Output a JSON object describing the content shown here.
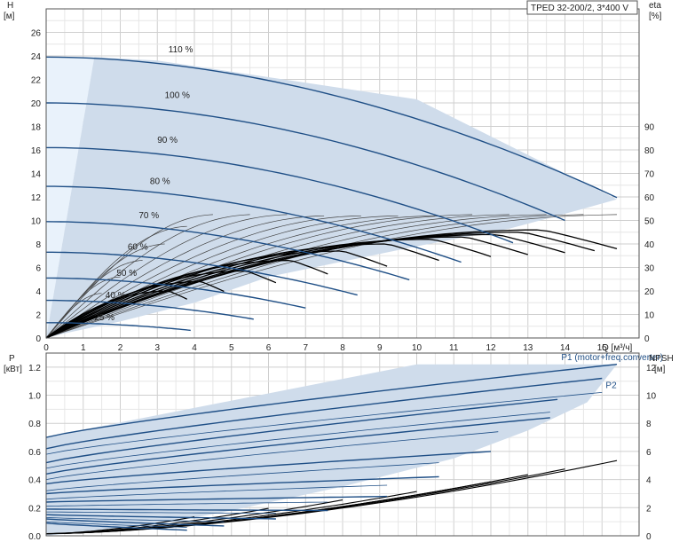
{
  "title": "TPED 32-200/2, 3*400 V",
  "colors": {
    "curve": "#1f4f86",
    "fill": "#cfdceb",
    "fill_light": "#e9f2fb",
    "grid": "#cfcfcf",
    "black": "#000000",
    "thin": "#444444"
  },
  "chart_data": [
    {
      "type": "line",
      "name": "head",
      "ylabel_left": "H",
      "yunit_left": "[м]",
      "ylabel_right": "eta",
      "yunit_right": "[%]",
      "xlabel": "Q [м³/ч]",
      "xlim": [
        0,
        16
      ],
      "ylim": [
        0,
        28
      ],
      "xticks": [
        0,
        1,
        2,
        3,
        4,
        5,
        6,
        7,
        8,
        9,
        10,
        11,
        12,
        13,
        14,
        15
      ],
      "yticks_left": [
        0,
        2,
        4,
        6,
        8,
        10,
        12,
        14,
        16,
        18,
        20,
        22,
        24,
        26
      ],
      "yticks_right": [
        0,
        10,
        20,
        30,
        40,
        50,
        60,
        70,
        80,
        90
      ],
      "eta_per_head_unit": 5,
      "grid": true,
      "speed_curves": [
        {
          "label": "110 %",
          "H0": 23.9,
          "Qmax": 15.4,
          "label_x": 3.3,
          "label_y": 24.3
        },
        {
          "label": "100 %",
          "H0": 20.0,
          "Qmax": 14.0,
          "label_x": 3.2,
          "label_y": 20.4
        },
        {
          "label": "90 %",
          "H0": 16.2,
          "Qmax": 12.6,
          "label_x": 3.0,
          "label_y": 16.6
        },
        {
          "label": "80 %",
          "H0": 12.9,
          "Qmax": 11.2,
          "label_x": 2.8,
          "label_y": 13.1
        },
        {
          "label": "70 %",
          "H0": 9.9,
          "Qmax": 9.8,
          "label_x": 2.5,
          "label_y": 10.2
        },
        {
          "label": "60 %",
          "H0": 7.3,
          "Qmax": 8.4,
          "label_x": 2.2,
          "label_y": 7.5
        },
        {
          "label": "50 %",
          "H0": 5.1,
          "Qmax": 7.0,
          "label_x": 1.9,
          "label_y": 5.3
        },
        {
          "label": "40 %",
          "H0": 3.2,
          "Qmax": 5.6,
          "label_x": 1.6,
          "label_y": 3.4
        },
        {
          "label": "25 %",
          "H0": 1.3,
          "Qmax": 3.9,
          "label_x": 1.3,
          "label_y": 1.5
        }
      ],
      "operating_area": [
        [
          0,
          0
        ],
        [
          1.3,
          23.9
        ],
        [
          3.0,
          23.6
        ],
        [
          10.0,
          20.3
        ],
        [
          15.4,
          11.8
        ],
        [
          14.5,
          11.0
        ],
        [
          12.5,
          9.3
        ],
        [
          10.0,
          7.8
        ],
        [
          6.0,
          5.2
        ],
        [
          4.0,
          3.0
        ],
        [
          2.0,
          1.4
        ],
        [
          0.5,
          0.4
        ]
      ],
      "light_area": [
        [
          0,
          0
        ],
        [
          0,
          23.9
        ],
        [
          1.3,
          23.9
        ]
      ],
      "efficiency_curves": [
        {
          "Qmax": 15.4,
          "peak": 9.2
        },
        {
          "Qmax": 14.8,
          "peak": 9.0
        },
        {
          "Qmax": 14.0,
          "peak": 8.8
        },
        {
          "Qmax": 13.0,
          "peak": 8.6
        },
        {
          "Qmax": 12.0,
          "peak": 8.4
        },
        {
          "Qmax": 10.6,
          "peak": 8.0
        },
        {
          "Qmax": 9.2,
          "peak": 7.4
        },
        {
          "Qmax": 7.6,
          "peak": 6.6
        },
        {
          "Qmax": 6.2,
          "peak": 5.7
        },
        {
          "Qmax": 4.8,
          "peak": 4.8
        },
        {
          "Qmax": 3.8,
          "peak": 4.0
        }
      ],
      "system_curves": [
        {
          "Qmax": 15.4,
          "Hend": 10.5
        },
        {
          "Qmax": 14.5,
          "Hend": 10.5
        },
        {
          "Qmax": 13.5,
          "Hend": 10.5
        },
        {
          "Qmax": 12.5,
          "Hend": 10.5
        },
        {
          "Qmax": 11.5,
          "Hend": 10.5
        },
        {
          "Qmax": 10.5,
          "Hend": 10.4
        },
        {
          "Qmax": 9.5,
          "Hend": 10.4
        },
        {
          "Qmax": 8.5,
          "Hend": 10.4
        },
        {
          "Qmax": 7.5,
          "Hend": 10.4
        },
        {
          "Qmax": 6.5,
          "Hend": 10.5
        },
        {
          "Qmax": 5.5,
          "Hend": 10.5
        },
        {
          "Qmax": 4.5,
          "Hend": 10.5
        },
        {
          "Qmax": 3.8,
          "Hend": 9.5
        },
        {
          "Qmax": 3.2,
          "Hend": 8.0
        },
        {
          "Qmax": 2.6,
          "Hend": 6.6
        },
        {
          "Qmax": 2.0,
          "Hend": 5.2
        },
        {
          "Qmax": 1.5,
          "Hend": 3.8
        }
      ]
    },
    {
      "type": "line",
      "name": "power",
      "ylabel_left": "P",
      "yunit_left": "[кВт]",
      "ylabel_right": "NPSH",
      "yunit_right": "[м]",
      "xlim": [
        0,
        16
      ],
      "ylim": [
        0,
        1.3
      ],
      "yticks_left": [
        0,
        0.2,
        0.4,
        0.6,
        0.8,
        1.0,
        1.2
      ],
      "yticks_left_labels": [
        "0.0",
        "0.2",
        "0.4",
        "0.6",
        "0.8",
        "1.0",
        "1.2"
      ],
      "yticks_right": [
        0,
        2,
        4,
        6,
        8,
        10,
        12
      ],
      "npsh_per_kw": 10,
      "grid": true,
      "series_labels": [
        {
          "text": "P1 (motor+freq.converter)",
          "x": 13.9,
          "y": 1.25
        },
        {
          "text": "P2",
          "x": 15.1,
          "y": 1.05
        }
      ],
      "operating_area": [
        [
          0,
          0
        ],
        [
          0,
          0.7
        ],
        [
          1.3,
          0.77
        ],
        [
          10.0,
          1.22
        ],
        [
          15.4,
          1.22
        ],
        [
          14.6,
          0.95
        ],
        [
          13.0,
          0.75
        ],
        [
          11.0,
          0.55
        ],
        [
          8.0,
          0.35
        ],
        [
          5.0,
          0.18
        ],
        [
          3.0,
          0.08
        ]
      ],
      "p1_curves": [
        {
          "Qmax": 15.4,
          "P0": 0.7,
          "Pend": 1.22
        },
        {
          "Qmax": 15.0,
          "P0": 0.62,
          "Pend": 1.12
        },
        {
          "Qmax": 13.8,
          "P0": 0.52,
          "Pend": 0.97
        },
        {
          "Qmax": 13.6,
          "P0": 0.44,
          "Pend": 0.84
        },
        {
          "Qmax": 12.0,
          "P0": 0.37,
          "Pend": 0.6
        },
        {
          "Qmax": 10.6,
          "P0": 0.3,
          "Pend": 0.42
        },
        {
          "Qmax": 9.2,
          "P0": 0.24,
          "Pend": 0.28
        },
        {
          "Qmax": 7.6,
          "P0": 0.19,
          "Pend": 0.18
        },
        {
          "Qmax": 6.2,
          "P0": 0.15,
          "Pend": 0.12
        },
        {
          "Qmax": 4.8,
          "P0": 0.12,
          "Pend": 0.07
        },
        {
          "Qmax": 3.8,
          "P0": 0.09,
          "Pend": 0.04
        }
      ],
      "p2_curves": [
        {
          "Qmax": 15.0,
          "P0": 0.58,
          "Pend": 1.02
        },
        {
          "Qmax": 13.6,
          "P0": 0.48,
          "Pend": 0.88
        },
        {
          "Qmax": 12.2,
          "P0": 0.4,
          "Pend": 0.74
        },
        {
          "Qmax": 10.6,
          "P0": 0.32,
          "Pend": 0.52
        },
        {
          "Qmax": 9.2,
          "P0": 0.26,
          "Pend": 0.36
        },
        {
          "Qmax": 7.6,
          "P0": 0.21,
          "Pend": 0.24
        },
        {
          "Qmax": 6.2,
          "P0": 0.17,
          "Pend": 0.16
        },
        {
          "Qmax": 4.8,
          "P0": 0.13,
          "Pend": 0.1
        },
        {
          "Qmax": 3.8,
          "P0": 0.1,
          "Pend": 0.06
        }
      ],
      "npsh_curves": [
        {
          "Qmax": 15.4,
          "Nend": 5.2
        },
        {
          "Qmax": 14.0,
          "Nend": 4.6
        },
        {
          "Qmax": 13.0,
          "Nend": 4.2
        },
        {
          "Qmax": 12.0,
          "Nend": 3.7
        },
        {
          "Qmax": 10.0,
          "Nend": 3.0
        },
        {
          "Qmax": 8.0,
          "Nend": 2.4
        },
        {
          "Qmax": 6.0,
          "Nend": 1.8
        },
        {
          "Qmax": 4.0,
          "Nend": 1.2
        }
      ]
    }
  ]
}
